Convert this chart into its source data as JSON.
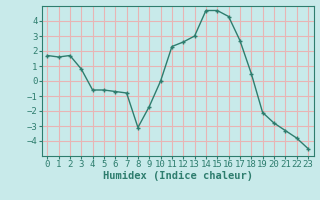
{
  "x": [
    0,
    1,
    2,
    3,
    4,
    5,
    6,
    7,
    8,
    9,
    10,
    11,
    12,
    13,
    14,
    15,
    16,
    17,
    18,
    19,
    20,
    21,
    22,
    23
  ],
  "y": [
    1.7,
    1.6,
    1.7,
    0.8,
    -0.6,
    -0.6,
    -0.7,
    -0.8,
    -3.1,
    -1.7,
    0.0,
    2.3,
    2.6,
    3.0,
    4.7,
    4.7,
    4.3,
    2.7,
    0.5,
    -2.1,
    -2.8,
    -3.3,
    -3.8,
    -4.5
  ],
  "line_color": "#2e7d6e",
  "marker_color": "#2e7d6e",
  "bg_color": "#c8eaea",
  "grid_color": "#e8b4b4",
  "xlabel": "Humidex (Indice chaleur)",
  "xlim": [
    -0.5,
    23.5
  ],
  "ylim": [
    -5,
    5
  ],
  "yticks": [
    -4,
    -3,
    -2,
    -1,
    0,
    1,
    2,
    3,
    4
  ],
  "xticks": [
    0,
    1,
    2,
    3,
    4,
    5,
    6,
    7,
    8,
    9,
    10,
    11,
    12,
    13,
    14,
    15,
    16,
    17,
    18,
    19,
    20,
    21,
    22,
    23
  ],
  "tick_fontsize": 6.5,
  "label_fontsize": 7.5
}
